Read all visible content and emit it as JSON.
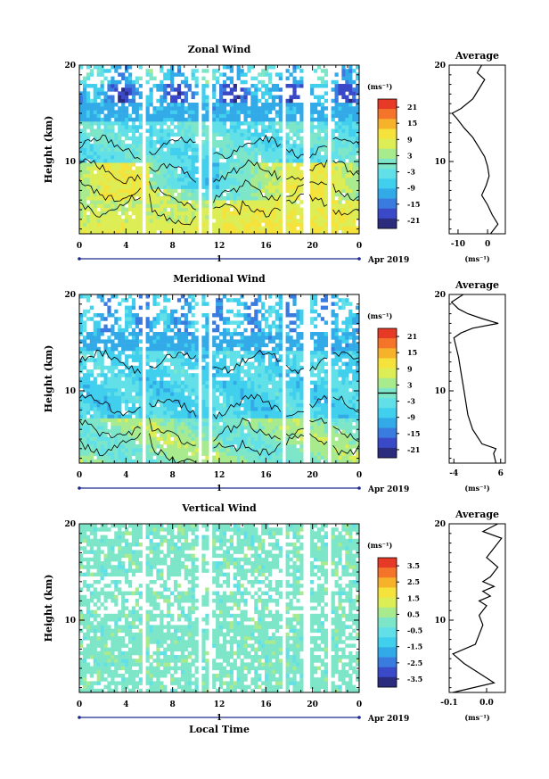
{
  "chart_data": [
    {
      "type": "heatmap",
      "title": "Zonal Wind",
      "ylabel": "Height (km)",
      "ylim": [
        2.5,
        20
      ],
      "y_ticks": [
        "10",
        "20"
      ],
      "xlim": [
        0,
        24
      ],
      "x_ticks": [
        "0",
        "4",
        "8",
        "12",
        "16",
        "20",
        "0"
      ],
      "date_labels": [
        "1",
        "Apr 2019"
      ],
      "colorbar": {
        "unit": "(ms⁻¹)",
        "min": -24,
        "max": 24,
        "ticks": [
          "21",
          "15",
          "9",
          "3",
          "-3",
          "-9",
          "-15",
          "-21"
        ],
        "zero_contour": true
      },
      "grid": false,
      "legend": "colorbar right",
      "profile": {
        "title": "Average",
        "xlabel": "(ms⁻¹)",
        "x_ticks": [
          "-10",
          "0"
        ],
        "y_ticks": [
          "10",
          "20"
        ],
        "xlim": [
          -13,
          6
        ],
        "ylim": [
          2.5,
          20
        ],
        "points": [
          [
            1.0,
            2.5
          ],
          [
            3.5,
            3.5
          ],
          [
            1.5,
            4.5
          ],
          [
            0.0,
            5.5
          ],
          [
            -2.0,
            6.5
          ],
          [
            -0.5,
            7.5
          ],
          [
            0.5,
            8.5
          ],
          [
            0.0,
            9.5
          ],
          [
            -1.0,
            10.5
          ],
          [
            -3.0,
            11.5
          ],
          [
            -5.0,
            12.5
          ],
          [
            -8.0,
            13.5
          ],
          [
            -10.5,
            14.5
          ],
          [
            -12.0,
            15.0
          ],
          [
            -9.0,
            15.5
          ],
          [
            -5.0,
            16.5
          ],
          [
            -3.0,
            17.5
          ],
          [
            -1.0,
            18.5
          ],
          [
            -3.5,
            19.2
          ],
          [
            -2.0,
            20.0
          ]
        ]
      }
    },
    {
      "type": "heatmap",
      "title": "Meridional Wind",
      "ylabel": "Height (km)",
      "ylim": [
        2.5,
        20
      ],
      "y_ticks": [
        "10",
        "20"
      ],
      "xlim": [
        0,
        24
      ],
      "x_ticks": [
        "0",
        "4",
        "8",
        "12",
        "16",
        "20",
        "0"
      ],
      "date_labels": [
        "1",
        "Apr 2019"
      ],
      "colorbar": {
        "unit": "(ms⁻¹)",
        "min": -24,
        "max": 24,
        "ticks": [
          "21",
          "15",
          "9",
          "3",
          "-3",
          "-9",
          "-15",
          "-21"
        ],
        "zero_contour": true
      },
      "grid": false,
      "legend": "colorbar right",
      "profile": {
        "title": "Average",
        "xlabel": "(ms⁻¹)",
        "x_ticks": [
          "-4",
          "6"
        ],
        "y_ticks": [
          "10",
          "20"
        ],
        "xlim": [
          -5,
          7
        ],
        "ylim": [
          2.5,
          20
        ],
        "points": [
          [
            5.0,
            2.5
          ],
          [
            4.5,
            3.5
          ],
          [
            5.0,
            4.0
          ],
          [
            2.0,
            4.5
          ],
          [
            0.0,
            6.0
          ],
          [
            -1.0,
            7.5
          ],
          [
            -1.5,
            9.0
          ],
          [
            -2.0,
            10.5
          ],
          [
            -2.5,
            12.0
          ],
          [
            -3.0,
            13.5
          ],
          [
            -3.5,
            14.5
          ],
          [
            -4.0,
            15.5
          ],
          [
            -2.5,
            16.0
          ],
          [
            0.0,
            16.5
          ],
          [
            5.5,
            17.0
          ],
          [
            2.0,
            17.5
          ],
          [
            -1.0,
            18.0
          ],
          [
            -3.0,
            18.5
          ],
          [
            -4.5,
            19.2
          ],
          [
            -2.0,
            20.0
          ]
        ]
      }
    },
    {
      "type": "heatmap",
      "title": "Vertical Wind",
      "ylabel": "Height (km)",
      "xlabel": "Local Time",
      "ylim": [
        2.5,
        20
      ],
      "y_ticks": [
        "10",
        "20"
      ],
      "xlim": [
        0,
        24
      ],
      "x_ticks": [
        "0",
        "4",
        "8",
        "12",
        "16",
        "20",
        "0"
      ],
      "date_labels": [
        "1",
        "Apr 2019"
      ],
      "colorbar": {
        "unit": "(ms⁻¹)",
        "min": -4,
        "max": 4,
        "ticks": [
          "3.5",
          "2.5",
          "1.5",
          "0.5",
          "-0.5",
          "-1.5",
          "-2.5",
          "-3.5"
        ],
        "zero_contour": false
      },
      "grid": false,
      "legend": "colorbar right",
      "profile": {
        "title": "Average",
        "xlabel": "(ms⁻¹)",
        "x_ticks": [
          "-0.1",
          "0.0"
        ],
        "y_ticks": [
          "10",
          "20"
        ],
        "xlim": [
          -0.1,
          0.05
        ],
        "ylim": [
          2.5,
          20
        ],
        "points": [
          [
            -0.09,
            2.5
          ],
          [
            0.02,
            3.5
          ],
          [
            -0.02,
            4.5
          ],
          [
            -0.06,
            5.5
          ],
          [
            -0.09,
            6.5
          ],
          [
            -0.03,
            7.5
          ],
          [
            -0.02,
            8.5
          ],
          [
            -0.01,
            9.5
          ],
          [
            -0.02,
            10.5
          ],
          [
            0.0,
            11.5
          ],
          [
            -0.02,
            12.0
          ],
          [
            0.01,
            12.5
          ],
          [
            -0.01,
            13.0
          ],
          [
            0.02,
            13.5
          ],
          [
            -0.01,
            14.0
          ],
          [
            0.01,
            14.5
          ],
          [
            0.03,
            15.5
          ],
          [
            0.0,
            16.5
          ],
          [
            0.02,
            17.5
          ],
          [
            0.04,
            18.5
          ],
          [
            -0.01,
            19.2
          ],
          [
            0.03,
            20.0
          ]
        ]
      }
    }
  ]
}
